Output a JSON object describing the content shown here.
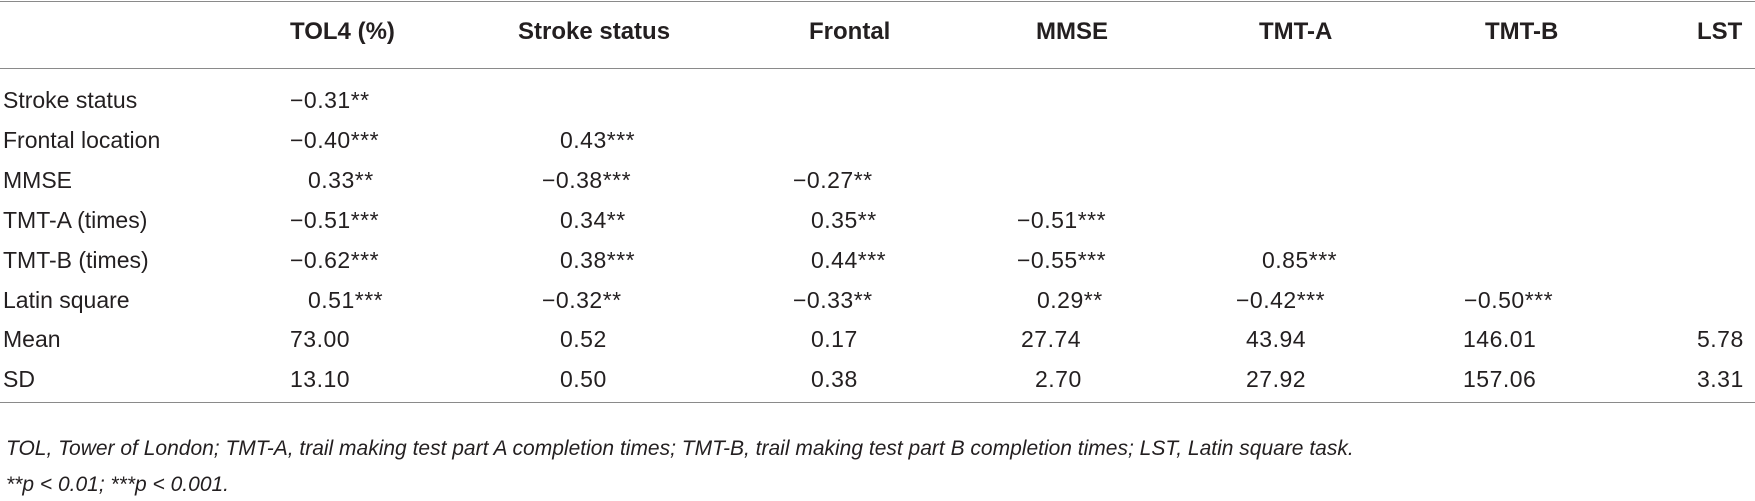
{
  "columns": [
    "",
    "TOL4 (%)",
    "Stroke status",
    "Frontal",
    "MMSE",
    "TMT-A",
    "TMT-B",
    "LST"
  ],
  "rows": [
    {
      "label": "Stroke status",
      "cells": [
        "−0.31**",
        "",
        "",
        "",
        "",
        "",
        ""
      ]
    },
    {
      "label": "Frontal location",
      "cells": [
        "−0.40***",
        "0.43***",
        "",
        "",
        "",
        "",
        ""
      ]
    },
    {
      "label": "MMSE",
      "cells": [
        "0.33**",
        "−0.38***",
        "−0.27**",
        "",
        "",
        "",
        ""
      ]
    },
    {
      "label": "TMT-A (times)",
      "cells": [
        "−0.51***",
        "0.34**",
        "0.35**",
        "−0.51***",
        "",
        "",
        ""
      ]
    },
    {
      "label": "TMT-B (times)",
      "cells": [
        "−0.62***",
        "0.38***",
        "0.44***",
        "−0.55***",
        "0.85***",
        "",
        ""
      ]
    },
    {
      "label": "Latin square",
      "cells": [
        "0.51***",
        "−0.32**",
        "−0.33**",
        "0.29**",
        "−0.42***",
        "−0.50***",
        ""
      ]
    },
    {
      "label": "Mean",
      "cells": [
        "73.00",
        "0.52",
        "0.17",
        "27.74",
        "43.94",
        "146.01",
        "5.78"
      ]
    },
    {
      "label": "SD",
      "cells": [
        "13.10",
        "0.50",
        "0.38",
        "2.70",
        "27.92",
        "157.06",
        "3.31"
      ]
    }
  ],
  "footnotes": {
    "abbreviations": "TOL, Tower of London; TMT-A, trail making test part A completion times; TMT-B, trail making test part B completion times; LST, Latin square task.",
    "significance": "**p < 0.01; ***p < 0.001."
  }
}
